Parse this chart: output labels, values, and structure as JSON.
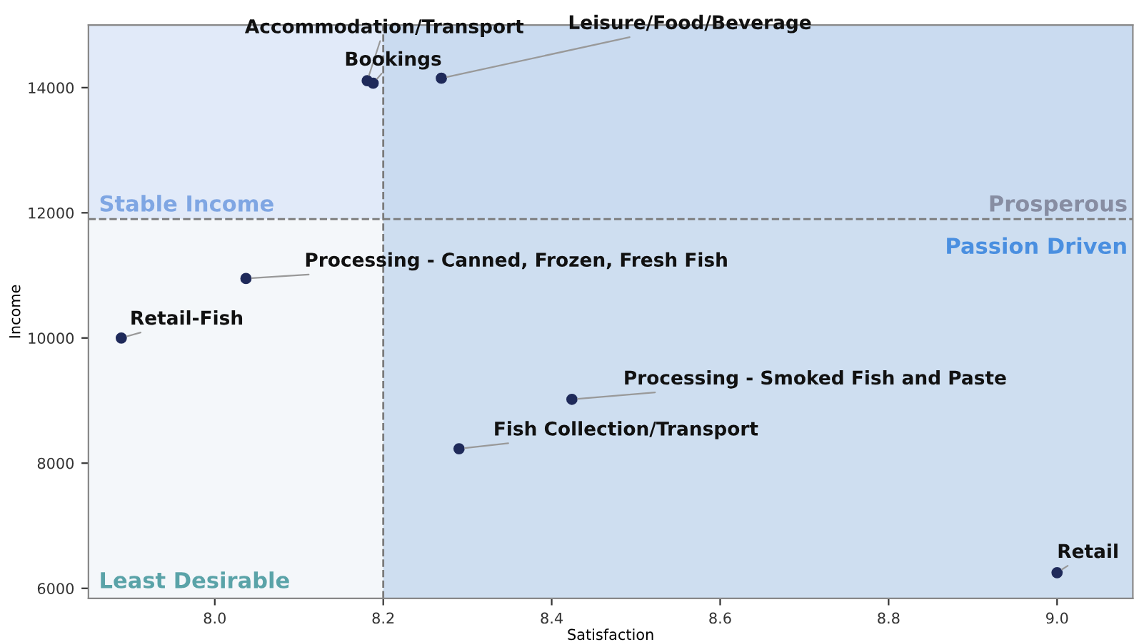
{
  "chart_data": {
    "type": "scatter",
    "xlabel": "Satisfaction",
    "ylabel": "Income",
    "series": [
      {
        "color": "#1f2a5a",
        "x": [
          8.181,
          8.188,
          8.269,
          8.037,
          7.889,
          8.424,
          8.29,
          9.0
        ],
        "values": [
          14110,
          14070,
          14150,
          10950,
          10000,
          9020,
          8230,
          6250
        ]
      }
    ],
    "marker": "circle",
    "xlim": [
      7.85,
      9.09
    ],
    "ylim": [
      5840,
      15000
    ],
    "xticks": [
      {
        "value": 8.0,
        "label": "8.0"
      },
      {
        "value": 8.2,
        "label": "8.2"
      },
      {
        "value": 8.4,
        "label": "8.4"
      },
      {
        "value": 8.6,
        "label": "8.6"
      },
      {
        "value": 8.8,
        "label": "8.8"
      },
      {
        "value": 9.0,
        "label": "9.0"
      }
    ],
    "yticks": [
      6000,
      8000,
      10000,
      12000,
      14000
    ],
    "grid": false,
    "ref_lines": [
      {
        "axis": "x",
        "value": 8.2,
        "color": "#7a7a7a",
        "line_style": "dashed"
      },
      {
        "axis": "y",
        "value": 11900,
        "color": "#7a7a7a",
        "line_style": "dashed"
      }
    ],
    "bands": [
      {
        "axis": "y",
        "from": 11900,
        "to": 15000,
        "color": "#dbe6f8"
      },
      {
        "axis": "x",
        "from": 8.2,
        "to": 9.09,
        "color": "#c2d6ec"
      }
    ],
    "annotations": [
      {
        "text": "Accommodation/Transport",
        "x": 8.181,
        "y": 14110
      },
      {
        "text": "Bookings",
        "x": 8.188,
        "y": 14070
      },
      {
        "text": "Leisure/Food/Beverage",
        "x": 8.269,
        "y": 14150
      },
      {
        "text": "Processing - Canned, Frozen, Fresh Fish",
        "x": 8.037,
        "y": 10950
      },
      {
        "text": "Retail-Fish",
        "x": 7.889,
        "y": 10000
      },
      {
        "text": "Processing - Smoked Fish and Paste",
        "x": 8.424,
        "y": 9020
      },
      {
        "text": "Fish Collection/Transport",
        "x": 8.29,
        "y": 8230
      },
      {
        "text": "Retail",
        "x": 9.0,
        "y": 6250
      },
      "Stable Income",
      "Prosperous",
      "Passion Driven",
      "Least Desirable"
    ]
  }
}
